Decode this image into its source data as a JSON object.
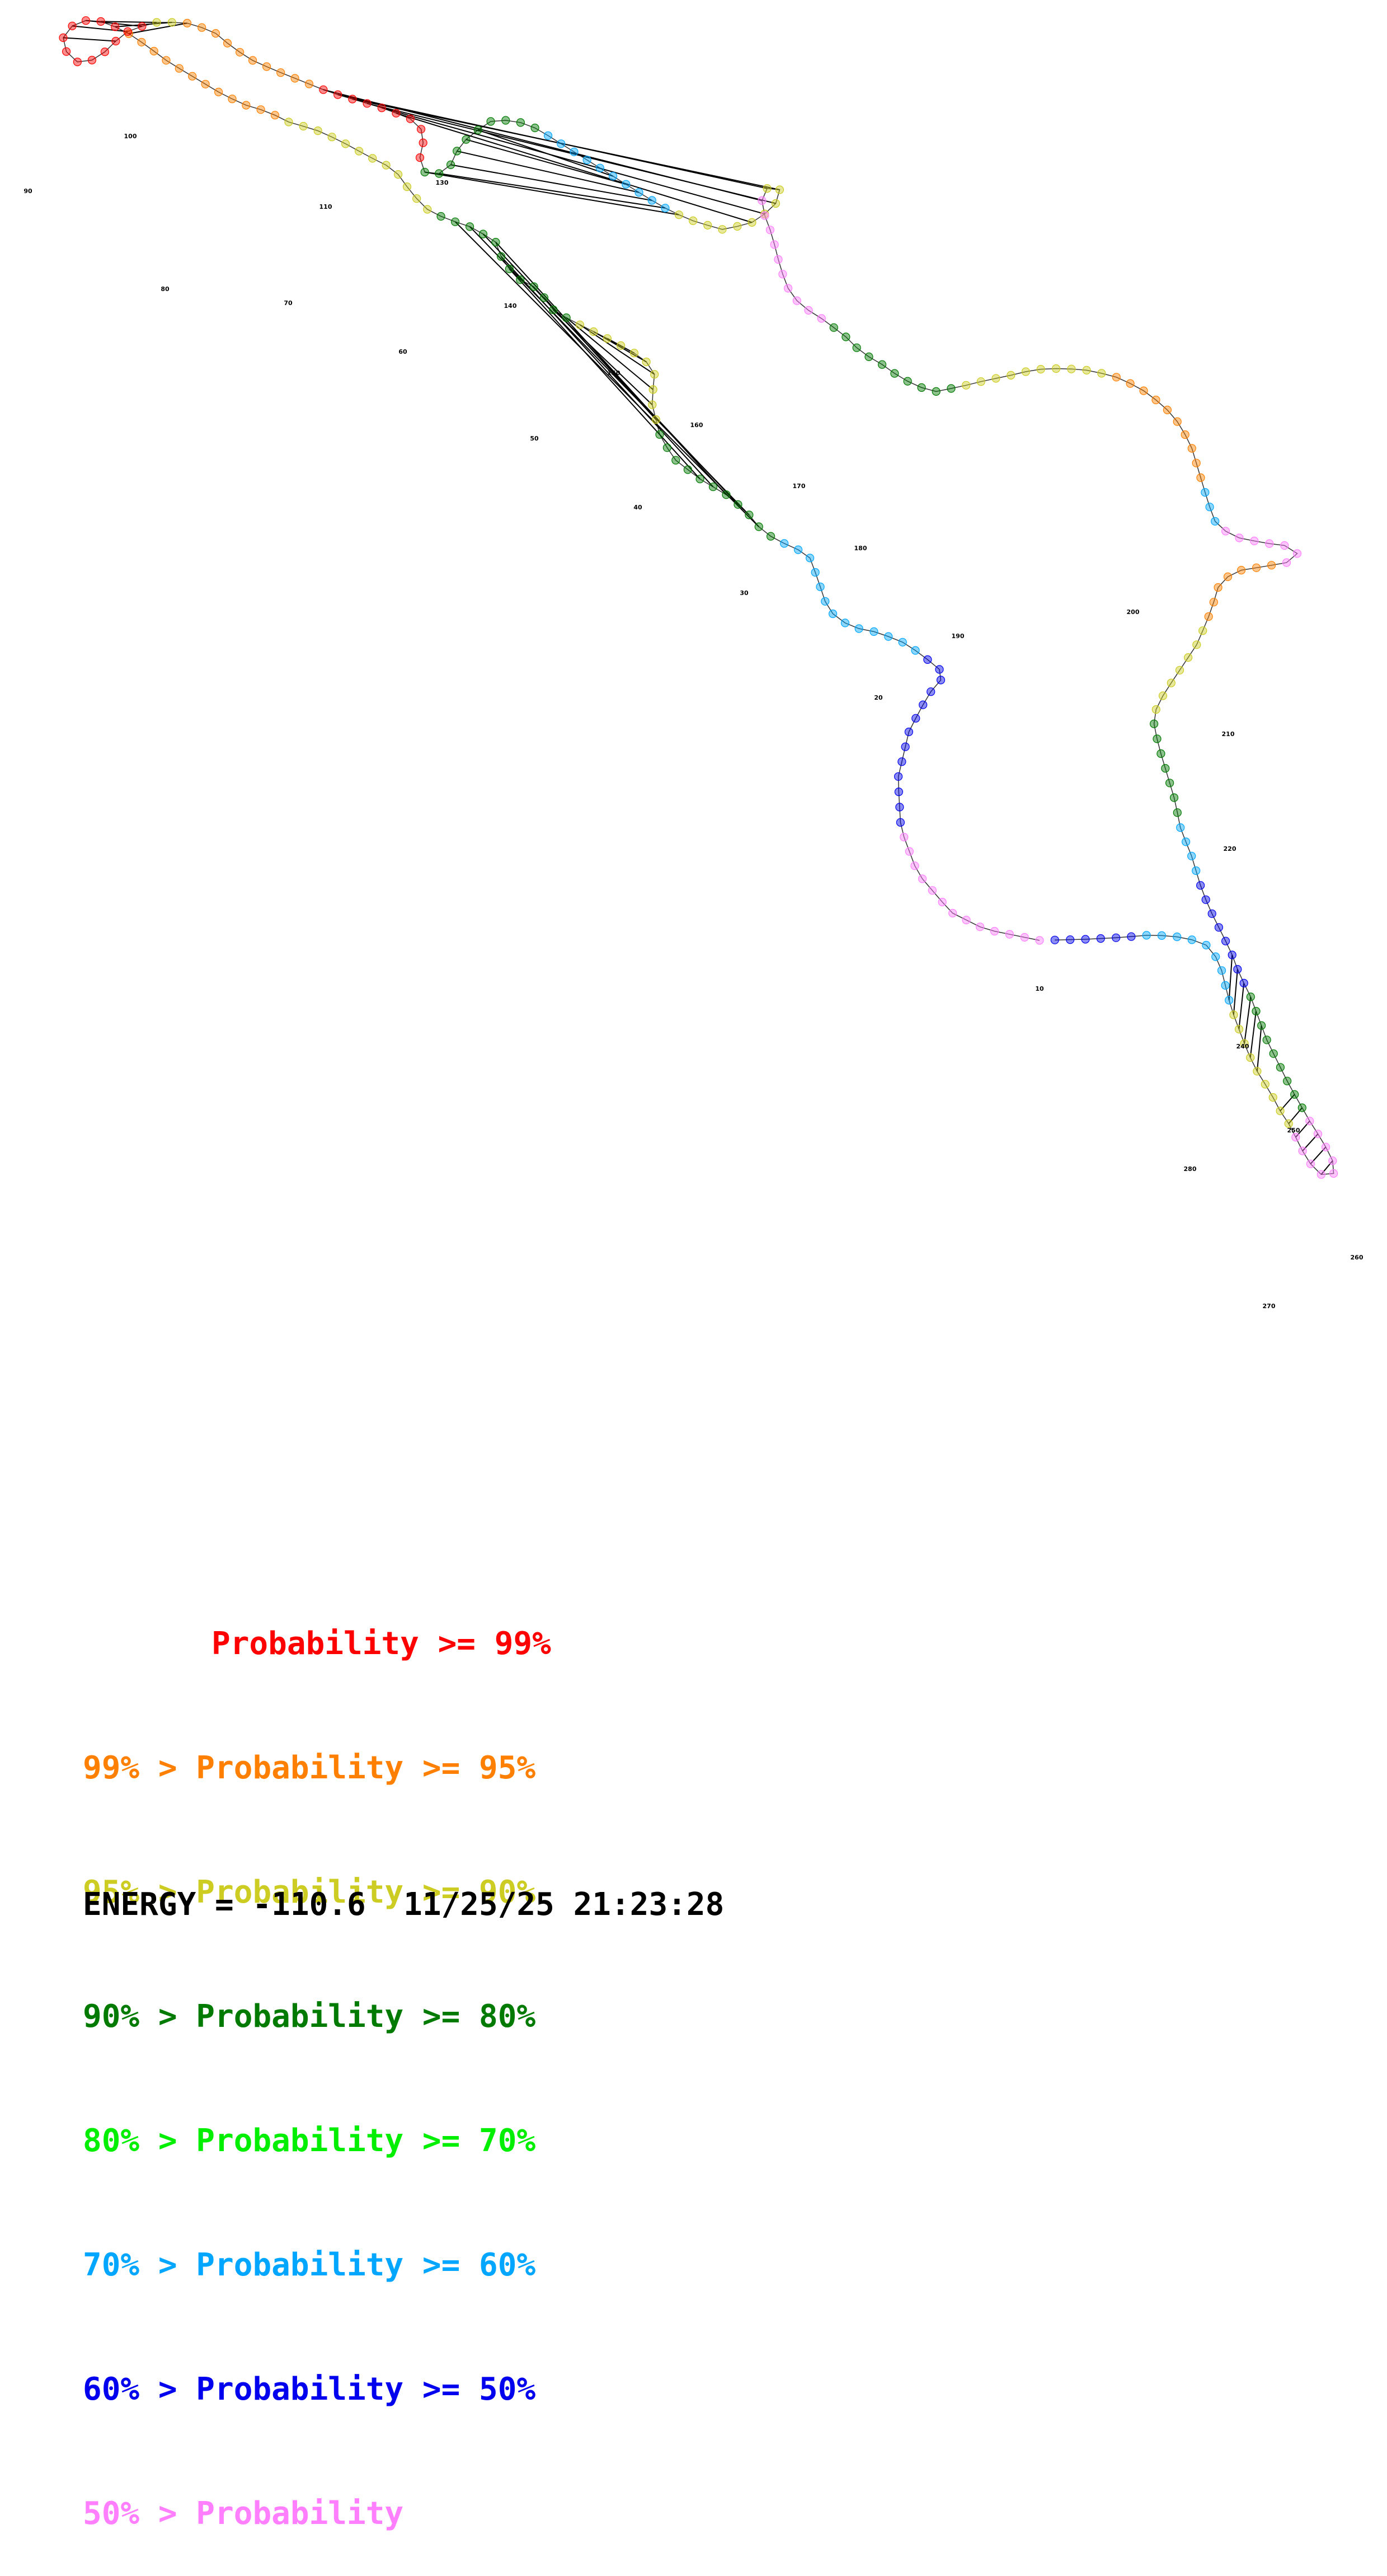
{
  "diagram": {
    "kind": "RNA secondary structure (base-pair probability coloring)",
    "position_labels": [
      "10",
      "20",
      "30",
      "40",
      "50",
      "60",
      "70",
      "80",
      "90",
      "100",
      "110",
      "130",
      "140",
      "150",
      "160",
      "170",
      "180",
      "190",
      "200",
      "210",
      "220",
      "240",
      "250",
      "260",
      "270",
      "280"
    ],
    "nucleotide_count_approx": 285,
    "color_scale_order": [
      "#ff0000",
      "#ff8000",
      "#cccc22",
      "#007a00",
      "#00ee00",
      "#00a6ff",
      "#0000ee",
      "#ff7fff"
    ]
  },
  "legend": {
    "rows": [
      {
        "lhs": "",
        "text": "Probability >= 99%",
        "color": "#ff0000"
      },
      {
        "lhs": "99% >",
        "text": "Probability >= 95%",
        "color": "#ff8000"
      },
      {
        "lhs": "95% >",
        "text": "Probability >= 90%",
        "color": "#cccc22"
      },
      {
        "lhs": "90% >",
        "text": "Probability >= 80%",
        "color": "#007a00"
      },
      {
        "lhs": "80% >",
        "text": "Probability >= 70%",
        "color": "#00ee00"
      },
      {
        "lhs": "70% >",
        "text": "Probability >= 60%",
        "color": "#00a6ff"
      },
      {
        "lhs": "60% >",
        "text": "Probability >= 50%",
        "color": "#0000ee"
      },
      {
        "lhs": "50% >",
        "text": "Probability",
        "color": "#ff7fff"
      }
    ]
  },
  "footer": {
    "energy_text": "ENERGY = -110.6  11/25/25 21:23:28"
  }
}
